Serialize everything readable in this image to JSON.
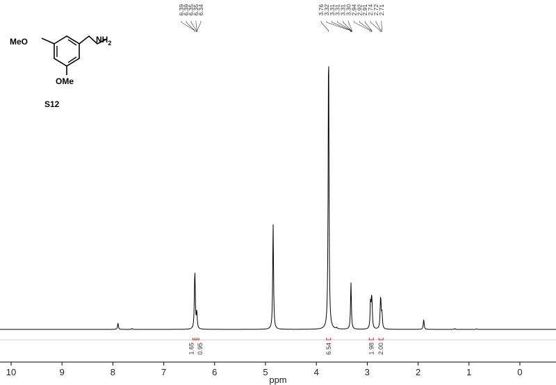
{
  "chart_data": {
    "type": "line",
    "title": "",
    "xlabel": "ppm",
    "ylabel": "",
    "x_reversed": true,
    "xlim": [
      10.5,
      -0.75
    ],
    "x_ticks": [
      "10",
      "9",
      "8",
      "7",
      "6",
      "5",
      "4",
      "3",
      "2",
      "1",
      "0"
    ],
    "grid": false,
    "compound": {
      "label": "S12",
      "substituent_left": "MeO",
      "substituent_bottom": "OMe",
      "substituent_chain": "NH",
      "subscript": "2"
    },
    "peaks": [
      {
        "ppm": 7.9,
        "height": 0.022
      },
      {
        "ppm": 7.62,
        "height": 0.003
      },
      {
        "ppm": 6.392,
        "height": 0.11
      },
      {
        "ppm": 6.385,
        "height": 0.11
      },
      {
        "ppm": 6.35,
        "height": 0.055
      },
      {
        "ppm": 4.85,
        "height": 0.36
      },
      {
        "ppm": 3.76,
        "height": 1.0
      },
      {
        "ppm": 3.6,
        "height": 0.004
      },
      {
        "ppm": 3.32,
        "height": 0.16
      },
      {
        "ppm": 2.935,
        "height": 0.09
      },
      {
        "ppm": 2.915,
        "height": 0.08
      },
      {
        "ppm": 2.905,
        "height": 0.05
      },
      {
        "ppm": 2.74,
        "height": 0.08
      },
      {
        "ppm": 2.73,
        "height": 0.05
      },
      {
        "ppm": 2.71,
        "height": 0.05
      },
      {
        "ppm": 1.89,
        "height": 0.035
      },
      {
        "ppm": 1.28,
        "height": 0.003
      },
      {
        "ppm": 0.85,
        "height": 0.002
      }
    ],
    "peak_labels": {
      "group1": {
        "ppm_range": [
          6.2,
          6.5
        ],
        "labels": [
          "6.39",
          "6.39",
          "6.35",
          "6.35",
          "6.34"
        ]
      },
      "group2": {
        "ppm_range": [
          2.6,
          3.8
        ],
        "labels": [
          "3.76",
          "3.32",
          "3.31",
          "3.31",
          "3.31",
          "3.30",
          "2.94",
          "2.92",
          "2.91",
          "2.74",
          "2.72",
          "2.71"
        ]
      }
    },
    "integrals": [
      {
        "ppm": 6.39,
        "value": "1.65"
      },
      {
        "ppm": 6.35,
        "value": "0.95"
      },
      {
        "ppm": 3.76,
        "value": "6.54"
      },
      {
        "ppm": 2.92,
        "value": "1.98"
      },
      {
        "ppm": 2.73,
        "value": "2.00"
      }
    ],
    "colors": {
      "spectrum": "#000000",
      "integral": "#d62020",
      "labels": "#333333"
    }
  }
}
